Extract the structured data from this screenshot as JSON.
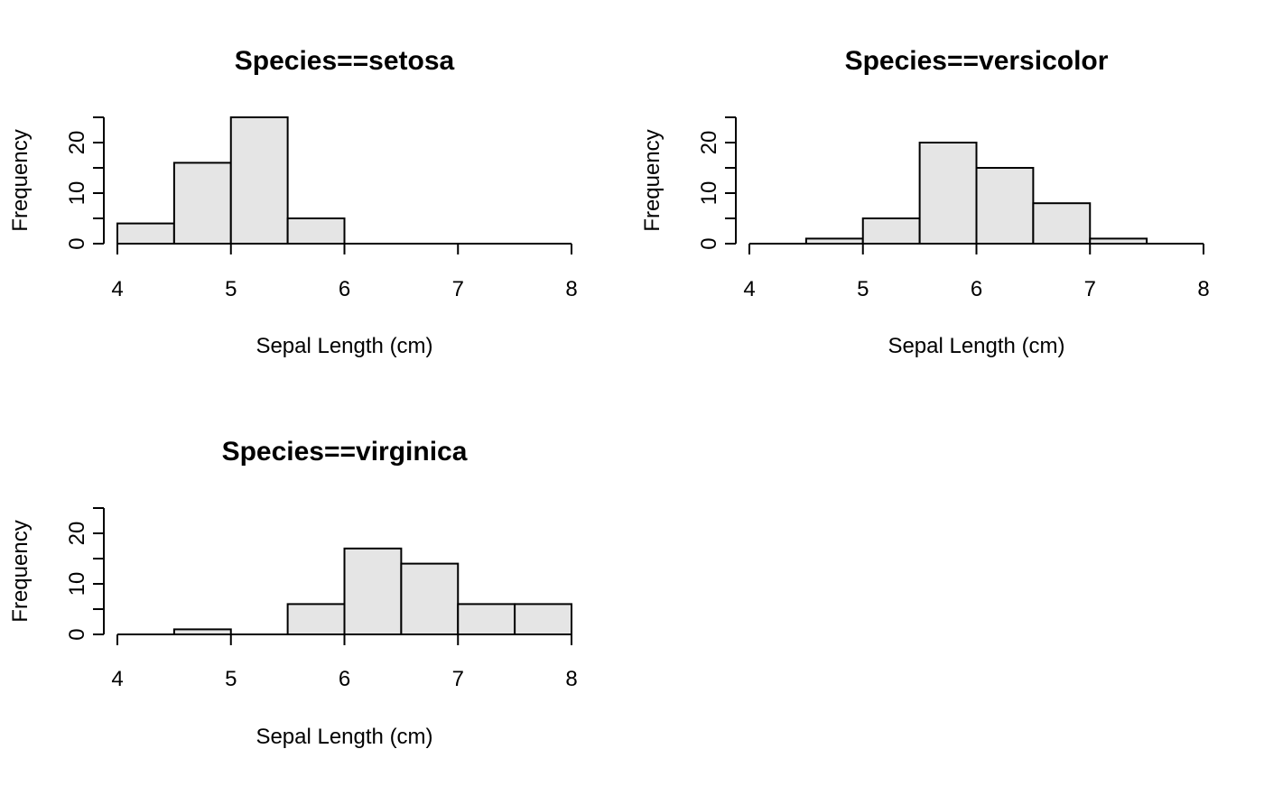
{
  "chart_data": [
    {
      "type": "bar",
      "title": "Species==setosa",
      "xlabel": "Sepal Length (cm)",
      "ylabel": "Frequency",
      "bin_edges": [
        4,
        4.5,
        5,
        5.5,
        6,
        6.5,
        7,
        7.5,
        8
      ],
      "values": [
        4,
        16,
        25,
        5,
        0,
        0,
        0,
        0
      ],
      "xlim": [
        4,
        8
      ],
      "ylim": [
        0,
        25
      ],
      "xticks": [
        4,
        5,
        6,
        7,
        8
      ],
      "yticks": [
        0,
        10,
        20
      ],
      "bar_color": "#e5e5e5",
      "grid": false
    },
    {
      "type": "bar",
      "title": "Species==versicolor",
      "xlabel": "Sepal Length (cm)",
      "ylabel": "Frequency",
      "bin_edges": [
        4,
        4.5,
        5,
        5.5,
        6,
        6.5,
        7,
        7.5,
        8
      ],
      "values": [
        0,
        1,
        5,
        20,
        15,
        8,
        1,
        0
      ],
      "xlim": [
        4,
        8
      ],
      "ylim": [
        0,
        25
      ],
      "xticks": [
        4,
        5,
        6,
        7,
        8
      ],
      "yticks": [
        0,
        10,
        20
      ],
      "bar_color": "#e5e5e5",
      "grid": false
    },
    {
      "type": "bar",
      "title": "Species==virginica",
      "xlabel": "Sepal Length (cm)",
      "ylabel": "Frequency",
      "bin_edges": [
        4,
        4.5,
        5,
        5.5,
        6,
        6.5,
        7,
        7.5,
        8
      ],
      "values": [
        0,
        1,
        0,
        6,
        17,
        14,
        6,
        6
      ],
      "xlim": [
        4,
        8
      ],
      "ylim": [
        0,
        25
      ],
      "xticks": [
        4,
        5,
        6,
        7,
        8
      ],
      "yticks": [
        0,
        10,
        20
      ],
      "bar_color": "#e5e5e5",
      "grid": false
    }
  ]
}
